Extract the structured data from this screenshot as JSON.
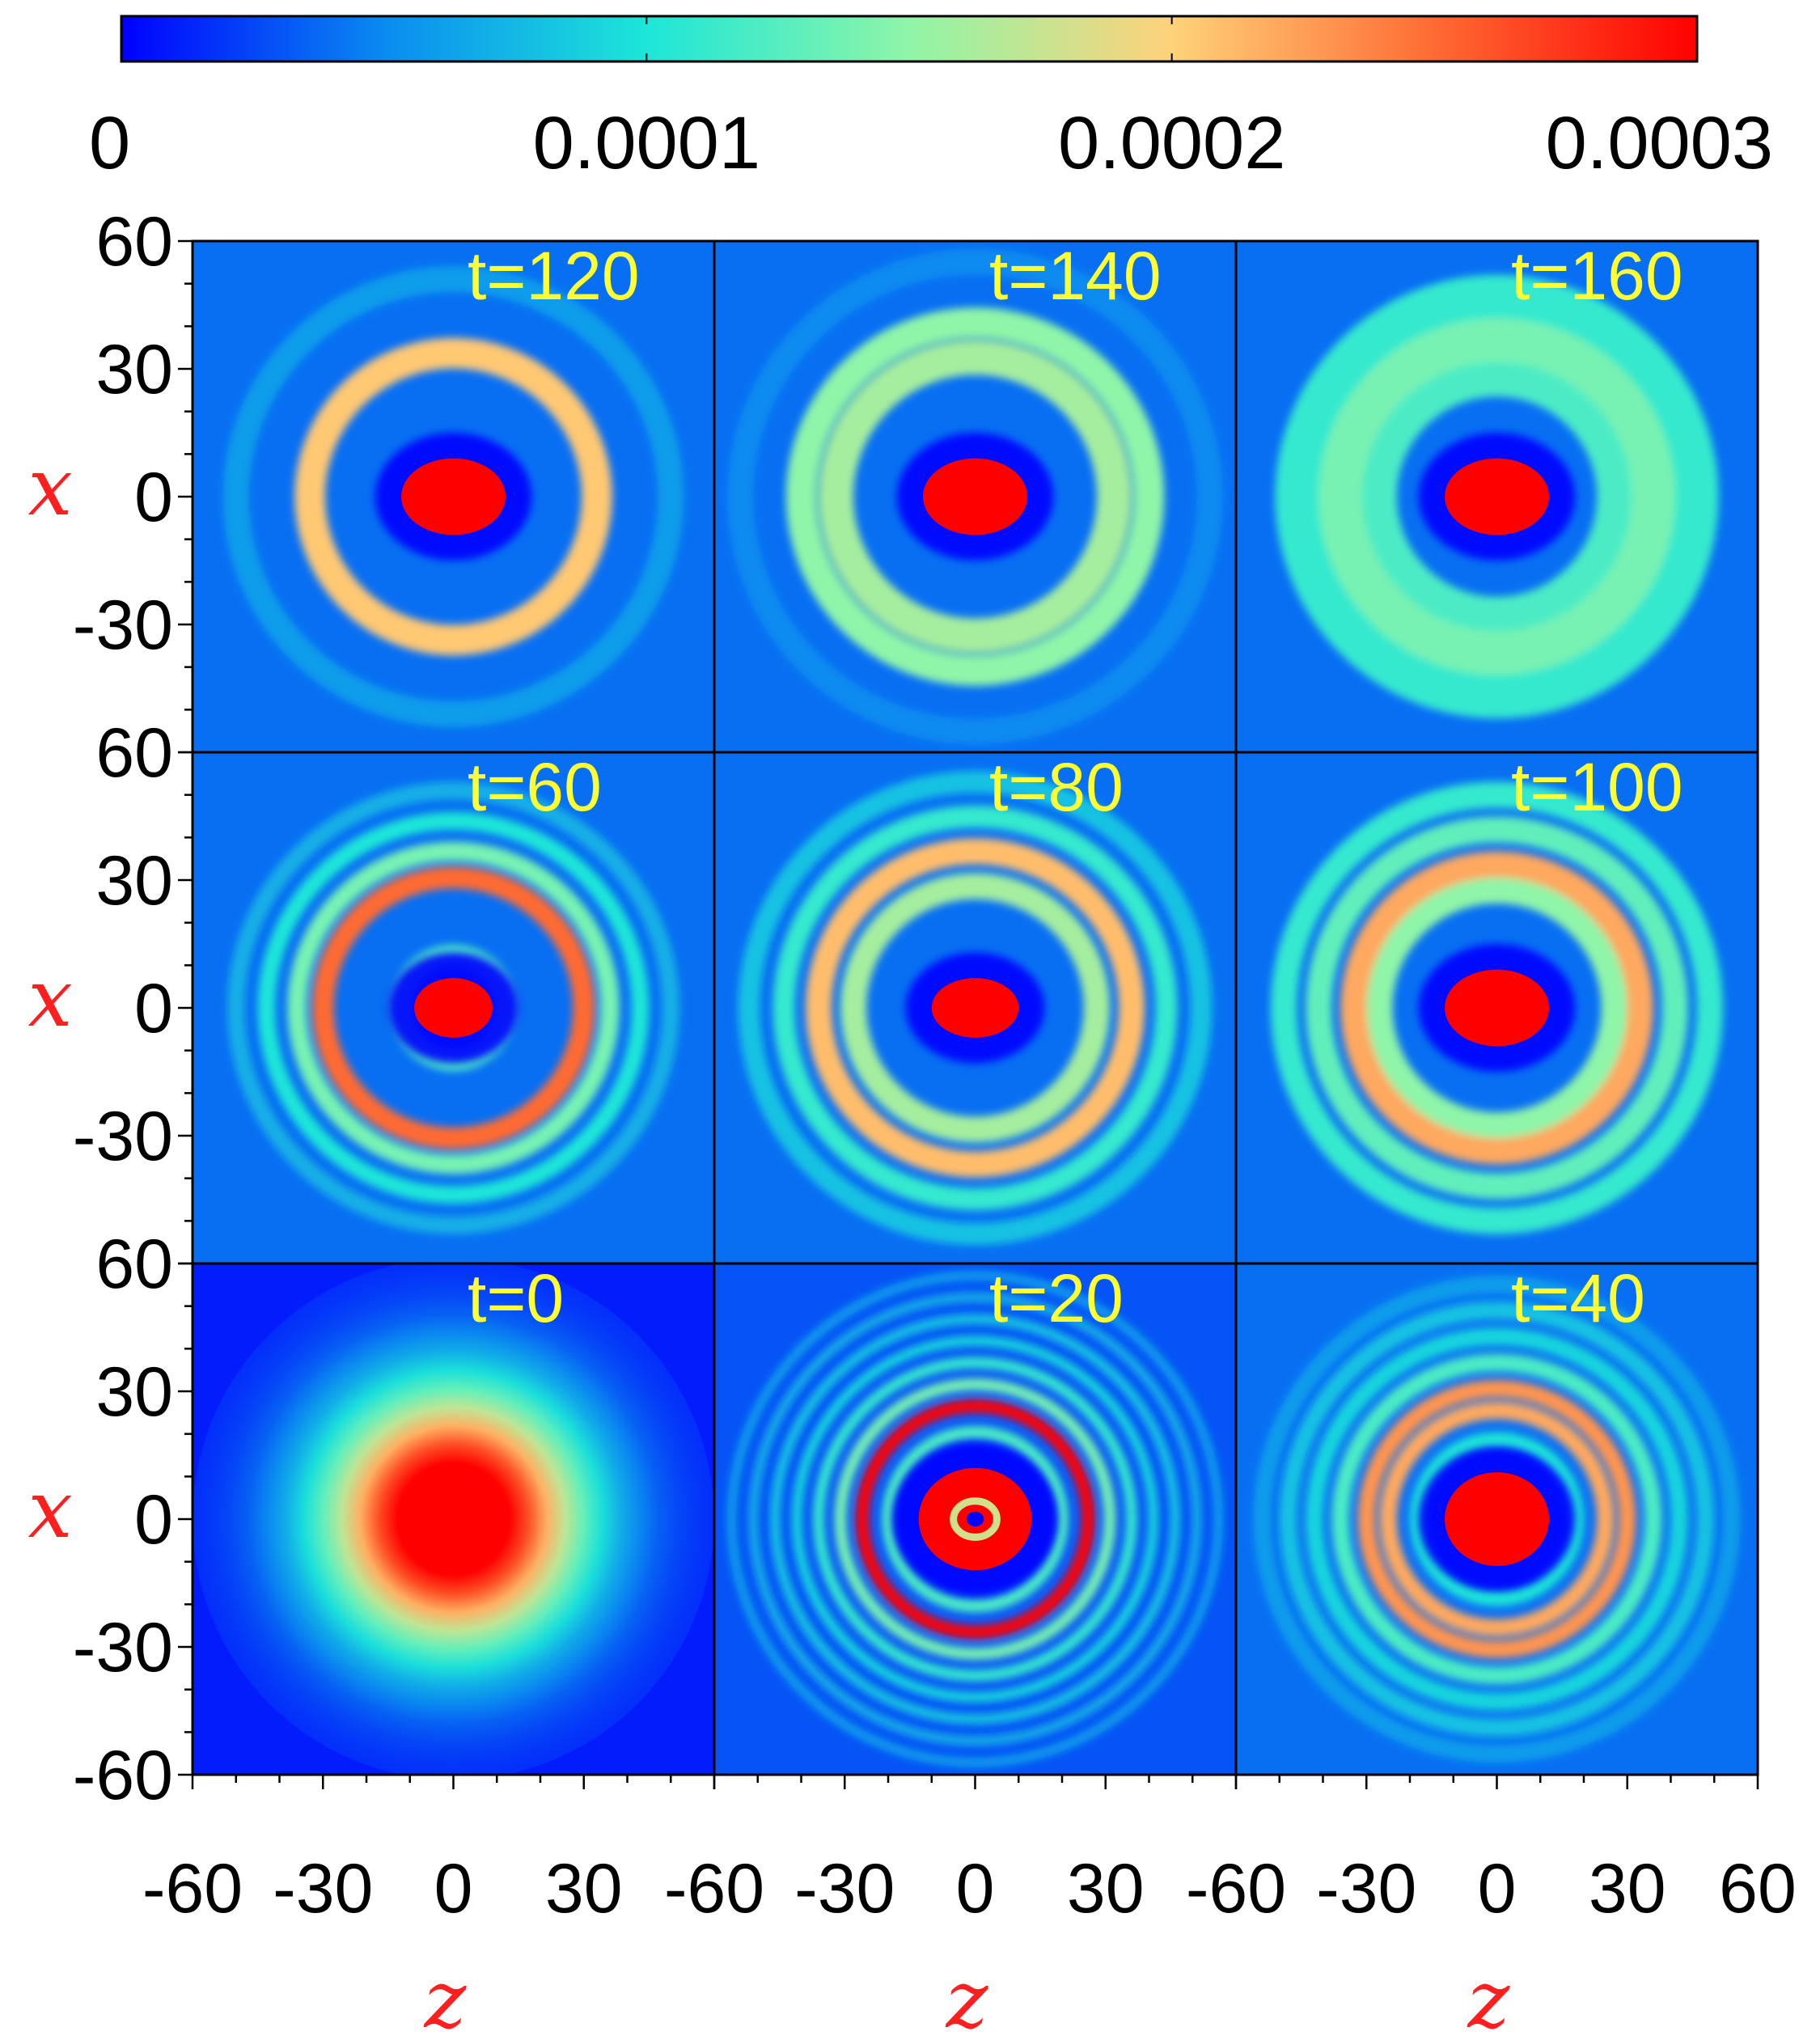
{
  "chart_data": {
    "type": "heatmap",
    "colorbar": {
      "range": [
        0,
        0.0003
      ],
      "tick_labels": [
        "0",
        "0.0001",
        "0.0002",
        "0.0003"
      ],
      "ticks": [
        0,
        0.0001,
        0.0002,
        0.0003
      ],
      "colormap": [
        "#0000ff",
        "#0a8bf0",
        "#1de6d8",
        "#8ff5a8",
        "#ffd27a",
        "#ff6a33",
        "#ff0000"
      ],
      "placement": "top"
    },
    "xlabel": "z",
    "ylabel": "x",
    "xlim": [
      -60,
      60
    ],
    "ylim": [
      -60,
      60
    ],
    "x_tick_labels": [
      [
        "-60",
        "-30",
        "0",
        "30"
      ],
      [
        "-60",
        "-30",
        "0",
        "30"
      ],
      [
        "-60",
        "-30",
        "0",
        "30",
        "60"
      ]
    ],
    "y_tick_labels": [
      "60",
      "30",
      "0",
      "-30",
      "-60"
    ],
    "panels": [
      {
        "label": "t=120",
        "t": 120,
        "row": 0,
        "col": 0,
        "core_radius": [
          12,
          9
        ],
        "rings": [
          {
            "r": 33,
            "w": 3.5,
            "v": 0.000205
          },
          {
            "r": 50,
            "w": 3,
            "v": 6e-05
          }
        ],
        "bg": 4e-05
      },
      {
        "label": "t=140",
        "t": 140,
        "row": 0,
        "col": 1,
        "core_radius": [
          12,
          9
        ],
        "rings": [
          {
            "r": 32,
            "w": 4,
            "v": 0.00016
          },
          {
            "r": 40,
            "w": 3.5,
            "v": 0.00015
          },
          {
            "r": 54,
            "w": 3,
            "v": 5e-05
          }
        ],
        "bg": 4e-05
      },
      {
        "label": "t=160",
        "t": 160,
        "row": 0,
        "col": 2,
        "core_radius": [
          12,
          9
        ],
        "rings": [
          {
            "r": 28,
            "w": 5,
            "v": 0.00012
          },
          {
            "r": 37,
            "w": 6,
            "v": 0.00014
          },
          {
            "r": 46,
            "w": 5,
            "v": 0.00011
          }
        ],
        "bg": 4e-05
      },
      {
        "label": "t=60",
        "t": 60,
        "row": 1,
        "col": 0,
        "core_radius": [
          9,
          7
        ],
        "rings": [
          {
            "r": 12,
            "w": 2.5,
            "v": 0.00012
          },
          {
            "r": 30,
            "w": 2.5,
            "v": 0.00025
          },
          {
            "r": 36,
            "w": 2.2,
            "v": 0.00014
          },
          {
            "r": 43,
            "w": 2,
            "v": 0.0001
          },
          {
            "r": 50,
            "w": 2,
            "v": 7e-05
          }
        ],
        "bg": 4e-05
      },
      {
        "label": "t=80",
        "t": 80,
        "row": 1,
        "col": 1,
        "core_radius": [
          10,
          7
        ],
        "rings": [
          {
            "r": 28,
            "w": 3,
            "v": 0.00016
          },
          {
            "r": 36,
            "w": 3,
            "v": 0.00021
          },
          {
            "r": 44,
            "w": 2.5,
            "v": 0.00011
          },
          {
            "r": 52,
            "w": 2.5,
            "v": 8e-05
          }
        ],
        "bg": 4e-05
      },
      {
        "label": "t=100",
        "t": 100,
        "row": 1,
        "col": 2,
        "core_radius": [
          12,
          9
        ],
        "rings": [
          {
            "r": 27,
            "w": 3,
            "v": 0.00015
          },
          {
            "r": 33,
            "w": 3,
            "v": 0.00022
          },
          {
            "r": 41,
            "w": 3,
            "v": 0.00013
          },
          {
            "r": 49,
            "w": 3,
            "v": 0.00011
          }
        ],
        "bg": 4e-05
      },
      {
        "label": "t=0",
        "t": 0,
        "row": 2,
        "col": 0,
        "gaussian_sigma": 20,
        "peak": 0.0003,
        "bg": 1e-05
      },
      {
        "label": "t=20",
        "t": 20,
        "row": 2,
        "col": 1,
        "core_radius": [
          13,
          12
        ],
        "hole_radius": 2.5,
        "rings": [
          {
            "r": 20,
            "w": 1.5,
            "v": 0.00012
          },
          {
            "r": 26,
            "w": 1.5,
            "v": 0.0003
          },
          {
            "r": 31,
            "w": 1.4,
            "v": 0.00014
          },
          {
            "r": 36,
            "w": 1.3,
            "v": 0.00011
          },
          {
            "r": 41,
            "w": 1.2,
            "v": 9e-05
          },
          {
            "r": 46,
            "w": 1.2,
            "v": 8e-05
          },
          {
            "r": 51,
            "w": 1.1,
            "v": 7e-05
          },
          {
            "r": 56,
            "w": 1.1,
            "v": 6e-05
          }
        ],
        "bg": 3e-05
      },
      {
        "label": "t=40",
        "t": 40,
        "row": 2,
        "col": 2,
        "core_radius": [
          12,
          11
        ],
        "rings": [
          {
            "r": 18,
            "w": 2,
            "v": 0.0001
          },
          {
            "r": 25,
            "w": 2,
            "v": 0.00022
          },
          {
            "r": 30,
            "w": 2,
            "v": 0.00023
          },
          {
            "r": 36,
            "w": 2,
            "v": 0.00012
          },
          {
            "r": 42,
            "w": 2,
            "v": 9e-05
          },
          {
            "r": 48,
            "w": 2,
            "v": 8e-05
          },
          {
            "r": 54,
            "w": 2,
            "v": 6e-05
          }
        ],
        "bg": 4e-05
      }
    ]
  }
}
